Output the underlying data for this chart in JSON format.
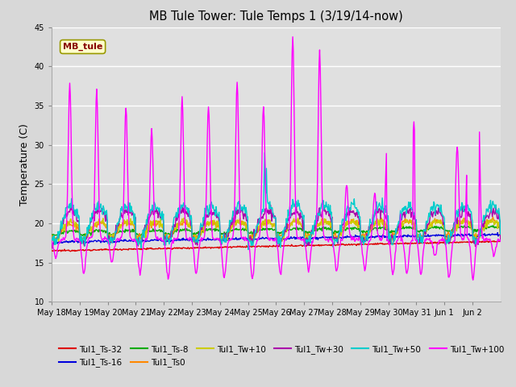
{
  "title": "MB Tule Tower: Tule Temps 1 (3/19/14-now)",
  "ylabel": "Temperature (C)",
  "ylim": [
    10,
    45
  ],
  "yticks": [
    10,
    15,
    20,
    25,
    30,
    35,
    40,
    45
  ],
  "bg_color": "#d8d8d8",
  "plot_bg_color": "#e0e0e0",
  "series_order": [
    "Tul1_Ts-32",
    "Tul1_Ts-16",
    "Tul1_Ts-8",
    "Tul1_Ts0",
    "Tul1_Tw+10",
    "Tul1_Tw+30",
    "Tul1_Tw+50",
    "Tul1_Tw+100"
  ],
  "series": {
    "Tul1_Ts-32": {
      "color": "#dd0000",
      "lw": 1.0
    },
    "Tul1_Ts-16": {
      "color": "#0000dd",
      "lw": 1.0
    },
    "Tul1_Ts-8": {
      "color": "#00aa00",
      "lw": 1.0
    },
    "Tul1_Ts0": {
      "color": "#ff8800",
      "lw": 1.0
    },
    "Tul1_Tw+10": {
      "color": "#cccc00",
      "lw": 1.0
    },
    "Tul1_Tw+30": {
      "color": "#aa00aa",
      "lw": 1.0
    },
    "Tul1_Tw+50": {
      "color": "#00cccc",
      "lw": 1.0
    },
    "Tul1_Tw+100": {
      "color": "#ff00ff",
      "lw": 1.0
    }
  },
  "inset_label": "MB_tule",
  "inset_bg": "#ffffcc",
  "inset_border": "#999900",
  "inset_text_color": "#880000",
  "x_tick_labels": [
    "May 18",
    "May 19",
    "May 20",
    "May 21",
    "May 22",
    "May 23",
    "May 24",
    "May 25",
    "May 26",
    "May 27",
    "May 28",
    "May 29",
    "May 30",
    "May 31",
    "Jun 1",
    "Jun 2"
  ],
  "legend_row1": [
    "Tul1_Ts-32",
    "Tul1_Ts-16",
    "Tul1_Ts-8",
    "Tul1_Ts0",
    "Tul1_Tw+10",
    "Tul1_Tw+30"
  ],
  "legend_row2": [
    "Tul1_Tw+50",
    "Tul1_Tw+100"
  ]
}
